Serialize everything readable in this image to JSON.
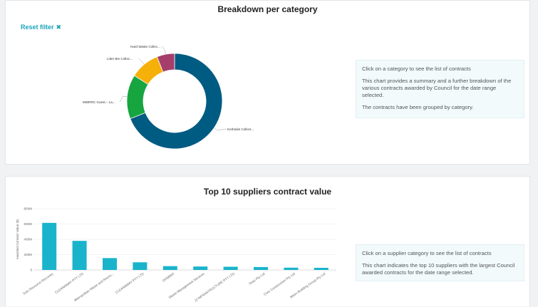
{
  "breakdown": {
    "title": "Breakdown per category",
    "reset_label": "Reset filter",
    "reset_icon": "close-icon",
    "info": [
      "Click on a category to see the list of contracts",
      "This chart provides a summary and a further breakdown of the various contracts awarded by Council for the date range selected.",
      "The contracts have been grouped by category."
    ]
  },
  "suppliers": {
    "title": "Top 10 suppliers contract value",
    "info": [
      "Click on a supplier category to see the list of contracts",
      "This chart indicates the top 10 suppliers with the largest Council awarded contracts for the date range selected."
    ]
  },
  "chart_data": [
    {
      "type": "pie",
      "title": "Breakdown per category",
      "categories": [
        "Kerbside Collect...",
        "MWRRC Guest – La...",
        "Litter Bin Collec...",
        "Hard Waste Collec..."
      ],
      "values": [
        69,
        15,
        10,
        6
      ],
      "colors": [
        "#005b82",
        "#17a540",
        "#f5b00a",
        "#a63e6c"
      ]
    },
    {
      "type": "bar",
      "title": "Top 10 suppliers contract value",
      "ylabel": "Awarded Contract Value ($)",
      "yticks": [
        "0",
        "200M",
        "400M",
        "600M",
        "800M"
      ],
      "ylim": [
        0,
        800
      ],
      "categories": [
        "Solo Resource Recovery",
        "CLEANAWAY PTY LTD",
        "Metropolitan Waste and Resou...",
        "CLEANAWAY PTY LTD",
        "DOMINO",
        "Waste Management Services",
        "JJ INFRASTRUCTURE PTY LTD",
        "Suez Pty Ltd",
        "Civic Construction Pty Ltd",
        "Metro Building Group Pty Ltd"
      ],
      "values": [
        615,
        380,
        155,
        100,
        50,
        45,
        42,
        38,
        30,
        28
      ],
      "color": "#19b4cc"
    }
  ]
}
